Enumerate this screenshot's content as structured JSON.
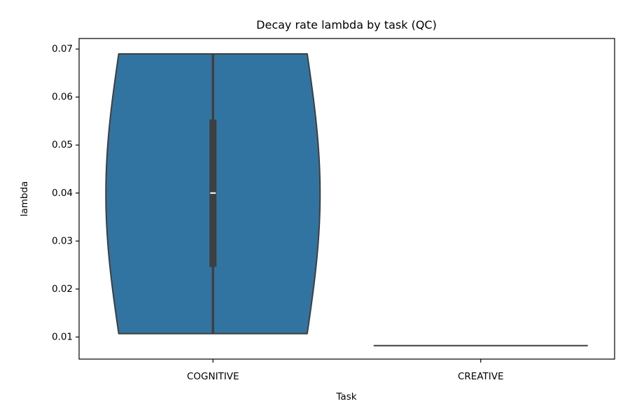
{
  "chart_data": {
    "type": "violin",
    "title": "Decay rate lambda by task (QC)",
    "xlabel": "Task",
    "ylabel": "lambda",
    "categories": [
      "COGNITIVE",
      "CREATIVE"
    ],
    "ylim": [
      0.0054,
      0.0722
    ],
    "yticks": [
      0.01,
      0.02,
      0.03,
      0.04,
      0.05,
      0.06,
      0.07
    ],
    "ytick_labels": [
      "0.01",
      "0.02",
      "0.03",
      "0.04",
      "0.05",
      "0.06",
      "0.07"
    ],
    "violins": [
      {
        "category": "COGNITIVE",
        "min": 0.0107,
        "q1": 0.0246,
        "median": 0.04,
        "q3": 0.0553,
        "max": 0.069
      },
      {
        "category": "CREATIVE",
        "min": 0.0082,
        "q1": 0.0082,
        "median": 0.0082,
        "q3": 0.0082,
        "max": 0.0082
      }
    ],
    "grid": false,
    "legend": "none",
    "colors": {
      "fill": "#3274a1",
      "edge": "#3f3f3f",
      "box": "#3f3f3f",
      "median": "#ffffff"
    }
  }
}
